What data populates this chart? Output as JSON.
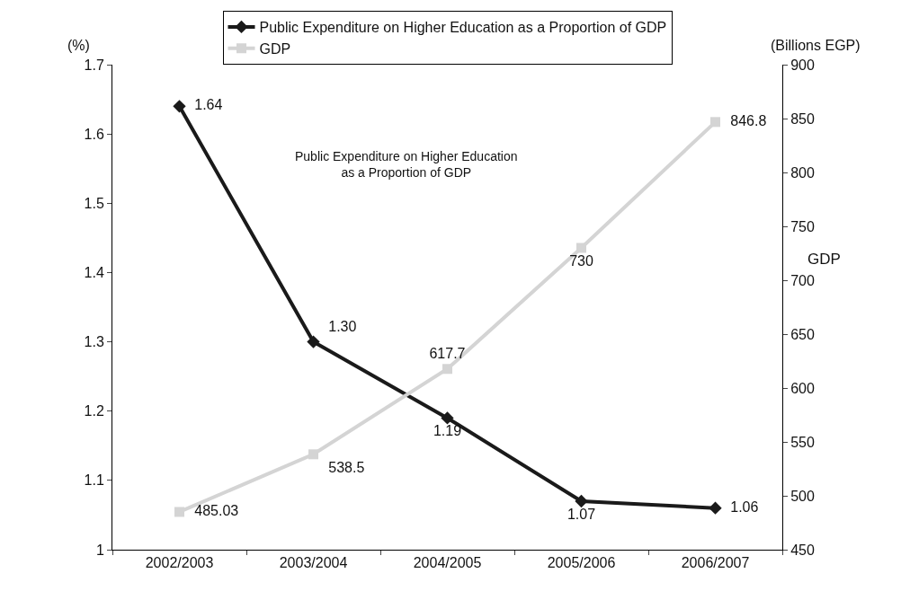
{
  "chart_data": {
    "type": "line",
    "ylabel": "(%)",
    "y2label": "GDP",
    "annotations": [
      "(Billions EGP)",
      "Public Expenditure on Higher Education\nas a Proportion of GDP"
    ],
    "categories": [
      "2002/2003",
      "2003/2004",
      "2004/2005",
      "2005/2006",
      "2006/2007"
    ],
    "series": [
      {
        "name": "Public Expenditure on Higher Education as a Proportion of GDP",
        "color": "#1a1a1a",
        "marker": "diamond",
        "values": [
          1.64,
          1.3,
          1.19,
          1.07,
          1.06
        ],
        "value_labels": [
          "1.64",
          "1.30",
          "1.19",
          "1.07",
          "1.06"
        ]
      },
      {
        "name": "GDP",
        "color": "#d4d4d4",
        "marker": "square",
        "axis": "y2",
        "values": [
          485.03,
          538.5,
          617.7,
          730,
          846.8
        ],
        "value_labels": [
          "485.03",
          "538.5",
          "617.7",
          "730",
          "846.8"
        ]
      }
    ],
    "ylim": [
      1,
      1.7
    ],
    "yticks": [
      1,
      1.1,
      1.2,
      1.3,
      1.4,
      1.5,
      1.6,
      1.7
    ],
    "y2lim": [
      450,
      900
    ],
    "y2ticks": [
      450,
      500,
      550,
      600,
      650,
      700,
      750,
      800,
      850,
      900
    ],
    "legend": "top"
  }
}
